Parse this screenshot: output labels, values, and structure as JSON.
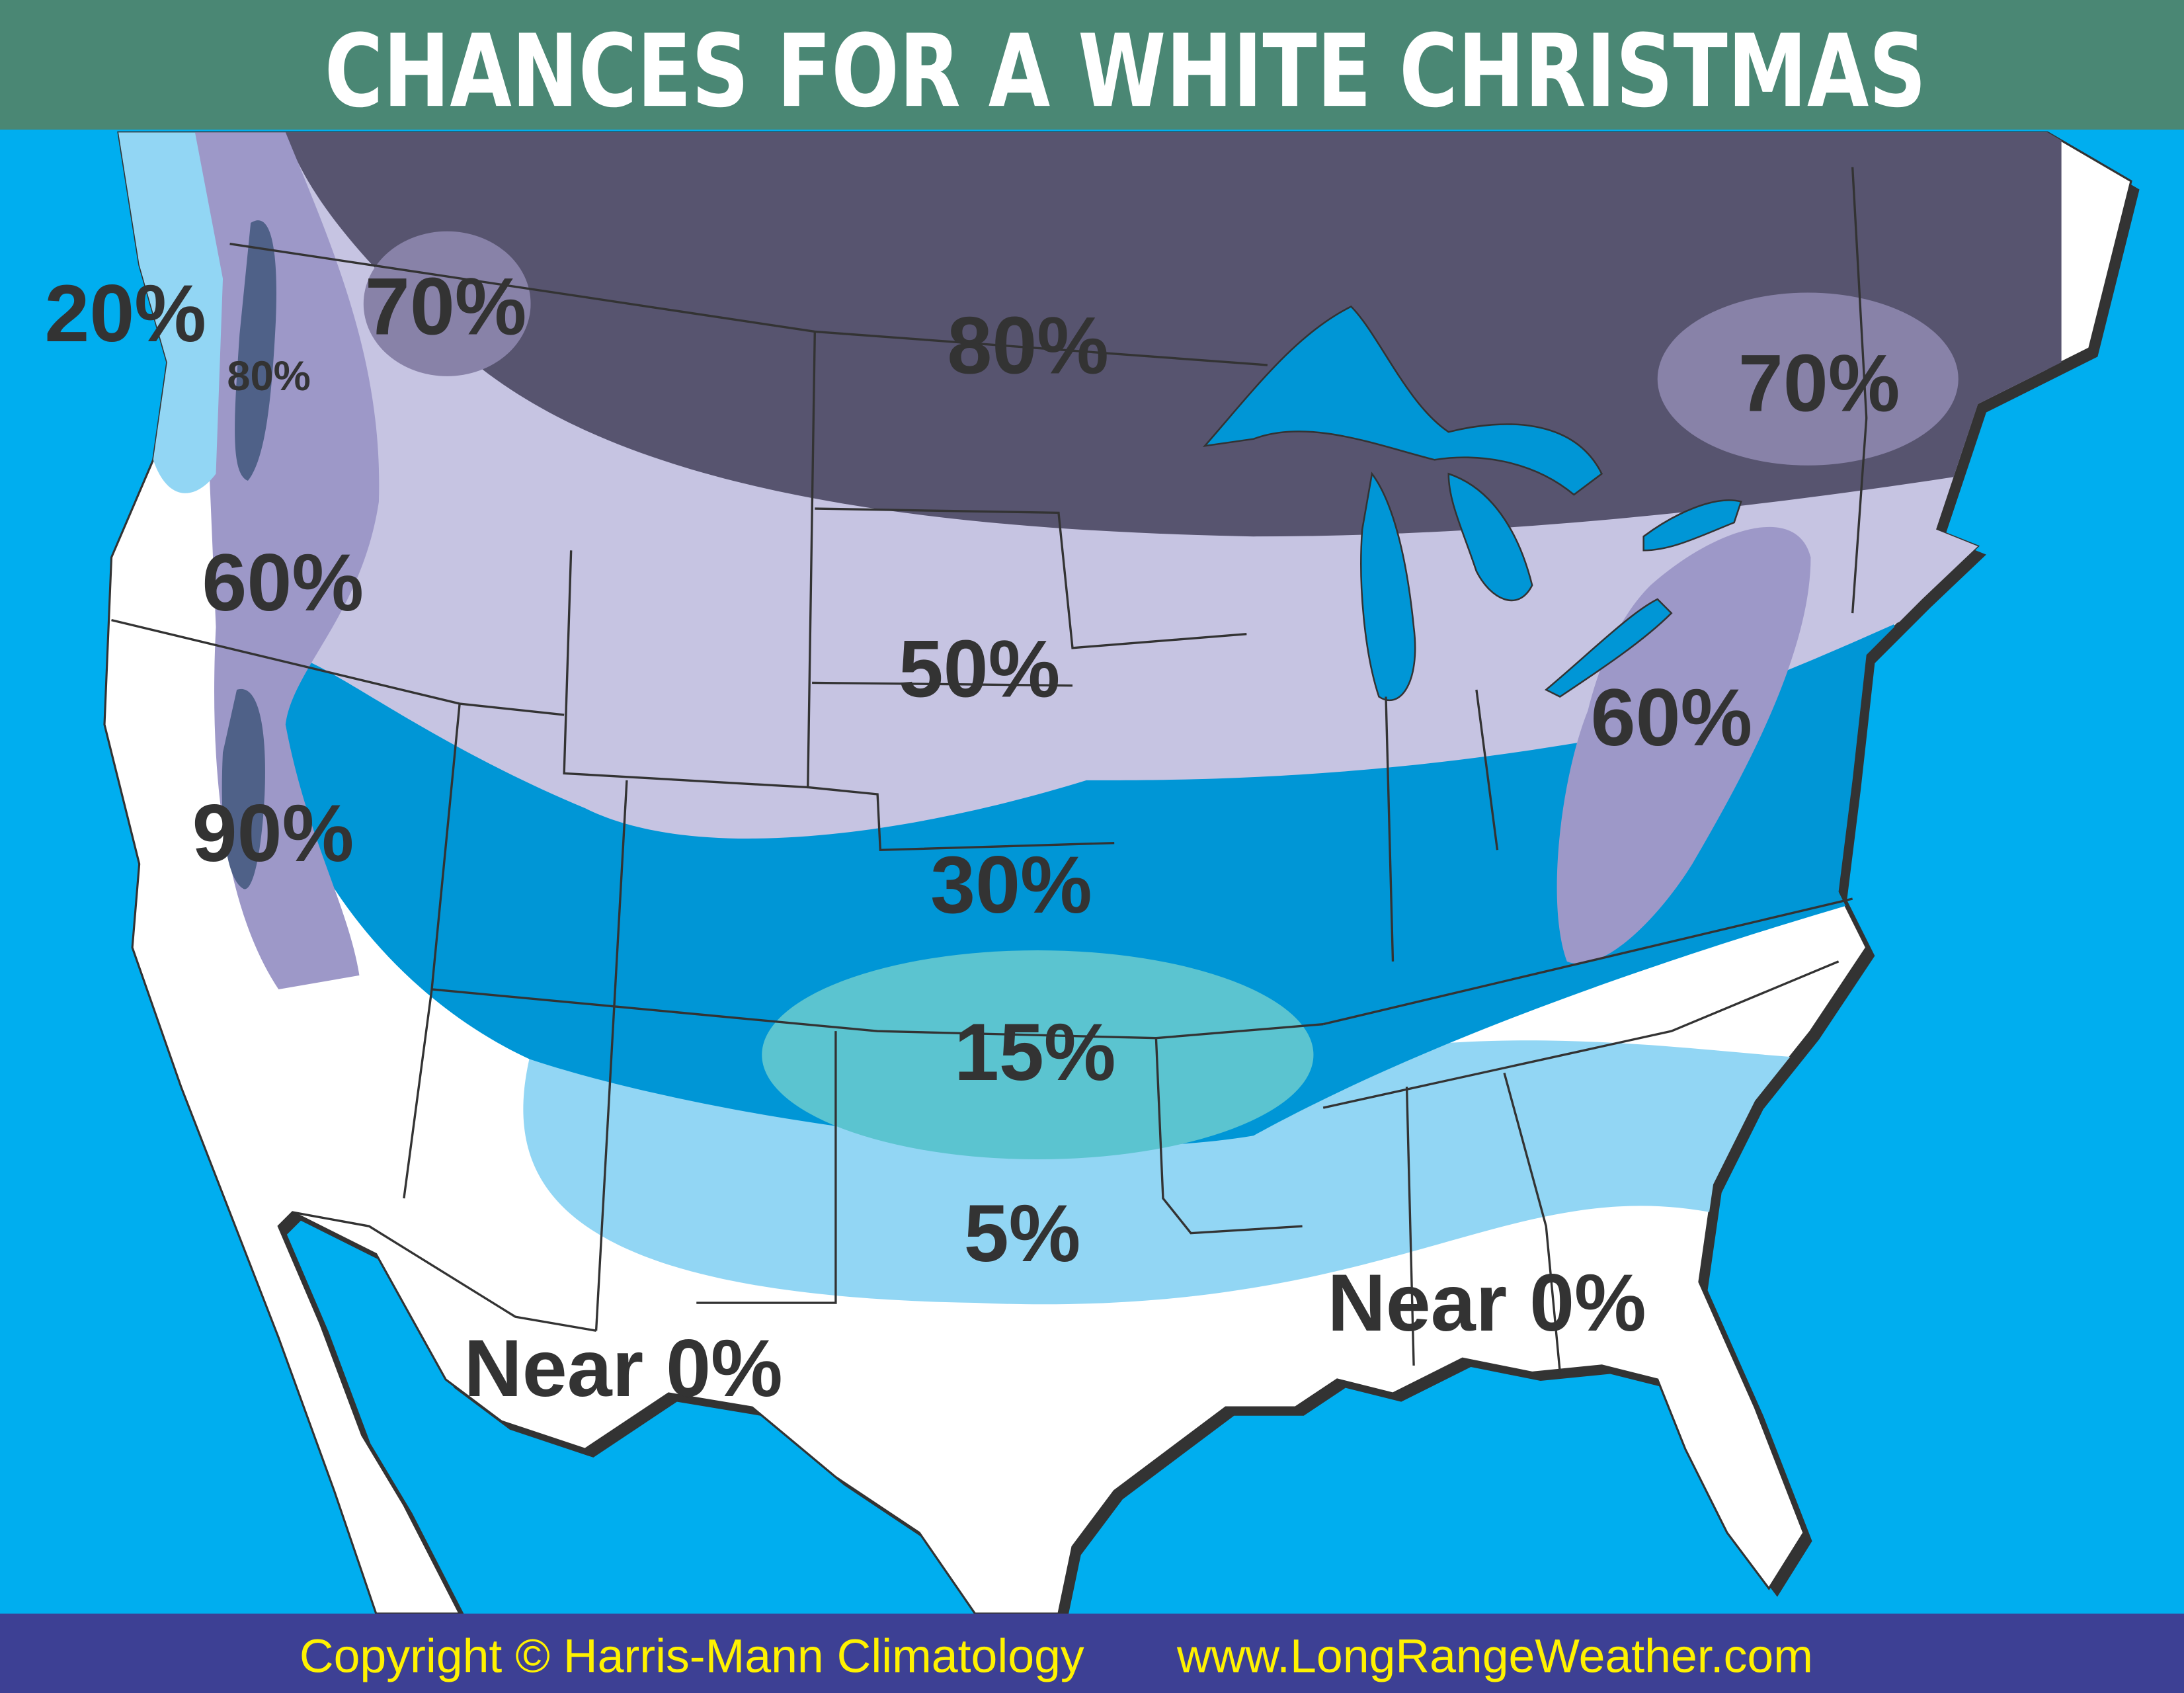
{
  "header": {
    "title": "CHANCES FOR A WHITE CHRISTMAS"
  },
  "zones": [
    {
      "id": "nw-coast",
      "label": "20%",
      "color": "#92D6F4"
    },
    {
      "id": "cascades",
      "label": "80%",
      "color": "#4F6188"
    },
    {
      "id": "nw-mountains",
      "label": "70%",
      "color": "#8882A8"
    },
    {
      "id": "north-plains",
      "label": "80%",
      "color": "#57546F"
    },
    {
      "id": "new-england",
      "label": "70%",
      "color": "#8882A8"
    },
    {
      "id": "west-mountains",
      "label": "60%",
      "color": "#9D98C8"
    },
    {
      "id": "sierra",
      "label": "90%",
      "color": "#4F6188"
    },
    {
      "id": "central",
      "label": "50%",
      "color": "#C6C4E2"
    },
    {
      "id": "appalachians",
      "label": "60%",
      "color": "#9D98C8"
    },
    {
      "id": "mid",
      "label": "30%",
      "color": "#0096D6"
    },
    {
      "id": "south-central",
      "label": "15%",
      "color": "#5BC4D0"
    },
    {
      "id": "south",
      "label": "5%",
      "color": "#92D6F4"
    },
    {
      "id": "southwest",
      "label": "Near 0%",
      "color": "#FFFFFF"
    },
    {
      "id": "southeast",
      "label": "Near 0%",
      "color": "#FFFFFF"
    }
  ],
  "colors": {
    "ocean": "#00AEEF",
    "header": "#4A8774",
    "footer": "#3D4094",
    "footer_text": "#FFF200",
    "label_text": "#333333"
  },
  "footer": {
    "copyright": "Copyright © Harris-Mann Climatology",
    "website": "www.LongRangeWeather.com"
  }
}
